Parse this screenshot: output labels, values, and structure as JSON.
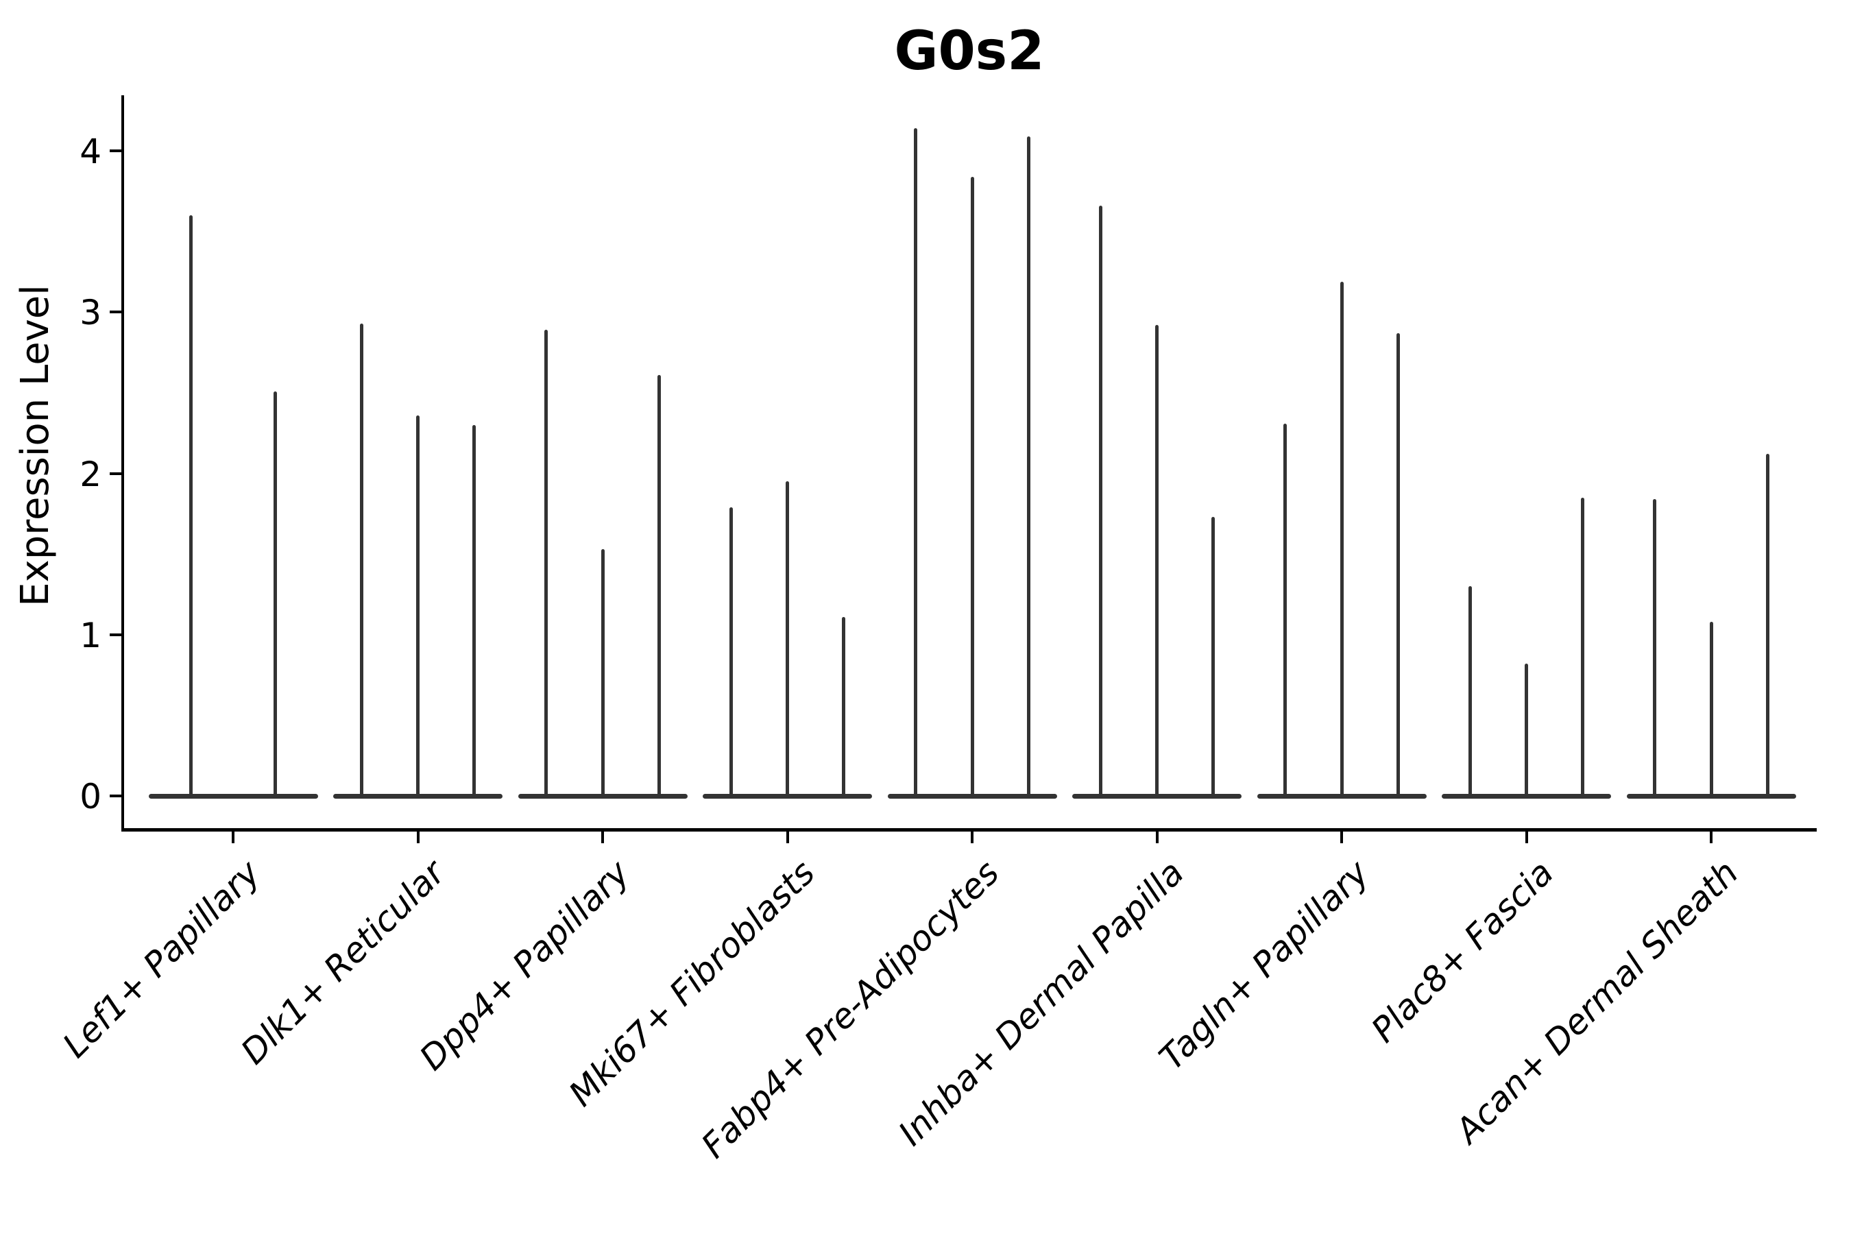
{
  "title": "G0s2",
  "y_axis": {
    "label": "Expression Level"
  },
  "colors": {
    "violin": "#333333",
    "axis": "#000000",
    "text": "#000000",
    "background": "#ffffff"
  },
  "chart_data": {
    "type": "violin",
    "title": "G0s2",
    "xlabel": "",
    "ylabel": "Expression Level",
    "yticks": [
      0,
      1,
      2,
      3,
      4
    ],
    "ylim": [
      0,
      4.34
    ],
    "grid": false,
    "legend": "none",
    "categories": [
      "Lef1+ Papillary",
      "Dlk1+ Reticular",
      "Dpp4+ Papillary",
      "Mki67+ Fibroblasts",
      "Fabp4+ Pre-Adipocytes",
      "Inhba+ Dermal Papilla",
      "Tagln+ Papillary",
      "Plac8+ Fascia",
      "Acan+ Dermal Sheath"
    ],
    "groups": [
      {
        "category": "Lef1+ Papillary",
        "violin_maxima": [
          3.6,
          2.51
        ]
      },
      {
        "category": "Dlk1+ Reticular",
        "violin_maxima": [
          2.93,
          2.36,
          2.3
        ]
      },
      {
        "category": "Dpp4+ Papillary",
        "violin_maxima": [
          2.89,
          1.53,
          2.61
        ]
      },
      {
        "category": "Mki67+ Fibroblasts",
        "violin_maxima": [
          1.79,
          1.95,
          1.11
        ]
      },
      {
        "category": "Fabp4+ Pre-Adipocytes",
        "violin_maxima": [
          4.14,
          3.84,
          4.09
        ]
      },
      {
        "category": "Inhba+ Dermal Papilla",
        "violin_maxima": [
          3.66,
          2.92,
          1.73
        ]
      },
      {
        "category": "Tagln+ Papillary",
        "violin_maxima": [
          2.31,
          3.19,
          2.87
        ]
      },
      {
        "category": "Plac8+ Fascia",
        "violin_maxima": [
          1.3,
          0.82,
          1.85
        ]
      },
      {
        "category": "Acan+ Dermal Sheath",
        "violin_maxima": [
          1.84,
          1.08,
          2.12
        ]
      }
    ]
  }
}
